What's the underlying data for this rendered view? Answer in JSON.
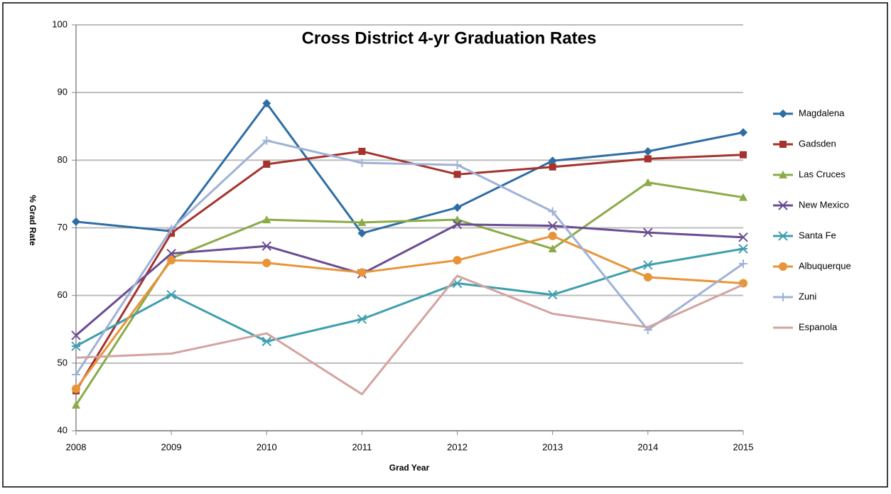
{
  "chart_data": {
    "type": "line",
    "title": "Cross District 4-yr Graduation Rates",
    "x_label": "Grad Year",
    "y_label": "% Grad Rate",
    "categories": [
      "2008",
      "2009",
      "2010",
      "2011",
      "2012",
      "2013",
      "2014",
      "2015"
    ],
    "ylim": [
      40,
      100
    ],
    "yticks": [
      40,
      50,
      60,
      70,
      80,
      90,
      100
    ],
    "grid": true,
    "legend": "right",
    "series": [
      {
        "name": "Magdalena",
        "color": "#2e6da4",
        "marker": "diamond",
        "values": [
          70.9,
          69.5,
          88.4,
          69.2,
          73.0,
          79.9,
          81.3,
          84.1
        ]
      },
      {
        "name": "Gadsden",
        "color": "#a5322d",
        "marker": "square",
        "values": [
          45.9,
          69.2,
          79.4,
          81.3,
          77.9,
          79.0,
          80.2,
          80.8
        ]
      },
      {
        "name": "Las Cruces",
        "color": "#8aab47",
        "marker": "triangle",
        "values": [
          43.8,
          65.5,
          71.2,
          70.8,
          71.2,
          66.9,
          76.7,
          74.5
        ]
      },
      {
        "name": "New Mexico",
        "color": "#6a4c93",
        "marker": "x",
        "values": [
          54.1,
          66.2,
          67.3,
          63.2,
          70.5,
          70.3,
          69.3,
          68.6
        ]
      },
      {
        "name": "Santa Fe",
        "color": "#3f9fae",
        "marker": "star",
        "values": [
          52.5,
          60.1,
          53.2,
          56.5,
          61.8,
          60.1,
          64.5,
          66.9
        ]
      },
      {
        "name": "Albuquerque",
        "color": "#e8953a",
        "marker": "circle",
        "values": [
          46.2,
          65.2,
          64.8,
          63.4,
          65.2,
          68.8,
          62.7,
          61.8
        ]
      },
      {
        "name": "Zuni",
        "color": "#9fb2d6",
        "marker": "plus",
        "values": [
          48.3,
          69.8,
          82.9,
          79.6,
          79.3,
          72.4,
          54.9,
          64.7
        ]
      },
      {
        "name": "Espanola",
        "color": "#d4a3a0",
        "marker": "none",
        "values": [
          50.8,
          51.4,
          54.4,
          45.4,
          62.9,
          57.3,
          55.3,
          61.6
        ]
      }
    ]
  }
}
